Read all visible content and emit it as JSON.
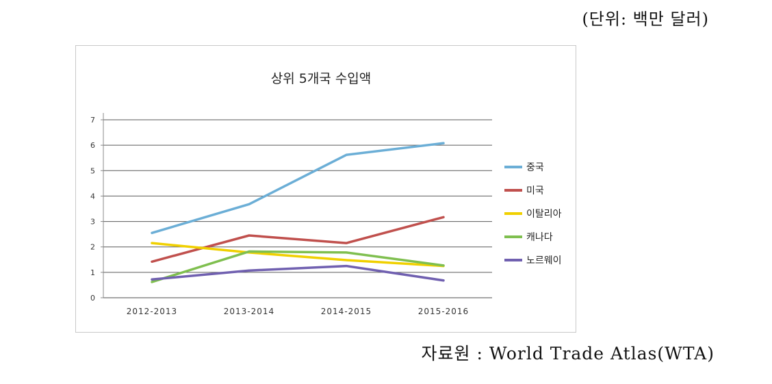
{
  "header": {
    "unit_note": "(단위: 백만 달러)"
  },
  "footer": {
    "source_note": "자료원 : World Trade Atlas(WTA)"
  },
  "chart_data": {
    "type": "line",
    "title": "상위 5개국 수입액",
    "categories": [
      "2012-2013",
      "2013-2014",
      "2014-2015",
      "2015-2016"
    ],
    "ylim": [
      0,
      7
    ],
    "yticks": [
      "0",
      "1",
      "2",
      "3",
      "4",
      "5",
      "6",
      "7"
    ],
    "grid": true,
    "legend_position": "right",
    "series": [
      {
        "name": "중국",
        "values": [
          2.55,
          3.68,
          5.62,
          6.08
        ],
        "color": "#6baed6"
      },
      {
        "name": "미국",
        "values": [
          1.42,
          2.45,
          2.15,
          3.17
        ],
        "color": "#c0504d"
      },
      {
        "name": "이탈리아",
        "values": [
          2.15,
          1.78,
          1.48,
          1.25
        ],
        "color": "#f0d000"
      },
      {
        "name": "캐나다",
        "values": [
          0.62,
          1.82,
          1.78,
          1.27
        ],
        "color": "#7fbf4f"
      },
      {
        "name": "노르웨이",
        "values": [
          0.72,
          1.07,
          1.25,
          0.68
        ],
        "color": "#7060b0"
      }
    ]
  }
}
